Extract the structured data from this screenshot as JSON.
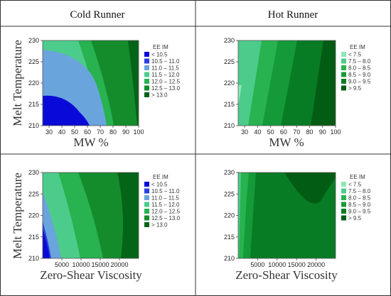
{
  "headers": [
    "Cold Runner",
    "Hot Runner"
  ],
  "chart_data": [
    {
      "type": "contour",
      "panel": "Cold Runner / MW",
      "xlabel": "MW %",
      "ylabel": "Melt Temperature",
      "xlim": [
        25,
        100
      ],
      "ylim": [
        210,
        230
      ],
      "xticks": [
        "30",
        "40",
        "50",
        "60",
        "70",
        "80",
        "90",
        "100"
      ],
      "yticks": [
        "210",
        "215",
        "220",
        "225",
        "230"
      ],
      "legend_title": "EE IM",
      "legend_placement": "right",
      "legend": [
        {
          "label": "<  10.5",
          "color": "#0a0ad8"
        },
        {
          "label": "10.5  –  11.0",
          "color": "#2a3fe0"
        },
        {
          "label": "11.0  –  11.5",
          "color": "#6aa4dc"
        },
        {
          "label": "11.5  –  12.0",
          "color": "#4ccc8a"
        },
        {
          "label": "12.0  –  12.5",
          "color": "#28b250"
        },
        {
          "label": "12.5  –  13.0",
          "color": "#148c2c"
        },
        {
          "label": ">  13.0",
          "color": "#046418"
        }
      ]
    },
    {
      "type": "contour",
      "panel": "Hot Runner / MW",
      "xlabel": "MW %",
      "ylabel": "",
      "xlim": [
        25,
        100
      ],
      "ylim": [
        210,
        230
      ],
      "xticks": [
        "30",
        "40",
        "50",
        "60",
        "70",
        "80",
        "90",
        "100"
      ],
      "yticks": [
        "210",
        "215",
        "220",
        "225",
        "230"
      ],
      "legend_title": "EE IM",
      "legend_placement": "right",
      "legend": [
        {
          "label": "<  7.5",
          "color": "#8ee8b4"
        },
        {
          "label": "7.5  –  8.0",
          "color": "#4ccc8a"
        },
        {
          "label": "8.0  –  8.5",
          "color": "#28b250"
        },
        {
          "label": "8.5  –  9.0",
          "color": "#149a38"
        },
        {
          "label": "9.0  –  9.5",
          "color": "#087c24"
        },
        {
          "label": ">  9.5",
          "color": "#035c14"
        }
      ]
    },
    {
      "type": "contour",
      "panel": "Cold Runner / Viscosity",
      "xlabel": "Zero-Shear Viscosity",
      "ylabel": "Melt Temperature",
      "xlim": [
        0,
        25000
      ],
      "ylim": [
        210,
        230
      ],
      "xticks": [
        "5000",
        "10000",
        "15000",
        "20000"
      ],
      "yticks": [
        "210",
        "215",
        "220",
        "225",
        "230"
      ],
      "legend_title": "EE IM",
      "legend_placement": "right",
      "legend": [
        {
          "label": "<  10.5",
          "color": "#0a0ad8"
        },
        {
          "label": "10.5  –  11.0",
          "color": "#2a3fe0"
        },
        {
          "label": "11.0  –  11.5",
          "color": "#6aa4dc"
        },
        {
          "label": "11.5  –  12.0",
          "color": "#4ccc8a"
        },
        {
          "label": "12.0  –  12.5",
          "color": "#28b250"
        },
        {
          "label": "12.5  –  13.0",
          "color": "#148c2c"
        },
        {
          "label": ">  13.0",
          "color": "#046418"
        }
      ]
    },
    {
      "type": "contour",
      "panel": "Hot Runner / Viscosity",
      "xlabel": "Zero-Shear Viscosity",
      "ylabel": "",
      "xlim": [
        0,
        25000
      ],
      "ylim": [
        210,
        230
      ],
      "xticks": [
        "5000",
        "10000",
        "15000",
        "20000"
      ],
      "yticks": [
        "210",
        "215",
        "220",
        "225",
        "230"
      ],
      "legend_title": "EE IM",
      "legend_placement": "right",
      "legend": [
        {
          "label": "<  7.5",
          "color": "#8ee8b4"
        },
        {
          "label": "7.5  –  8.0",
          "color": "#4ccc8a"
        },
        {
          "label": "8.0  –  8.5",
          "color": "#28b250"
        },
        {
          "label": "8.5  –  9.0",
          "color": "#149a38"
        },
        {
          "label": "9.0  –  9.5",
          "color": "#087c24"
        },
        {
          "label": ">  9.5",
          "color": "#035c14"
        }
      ]
    }
  ]
}
